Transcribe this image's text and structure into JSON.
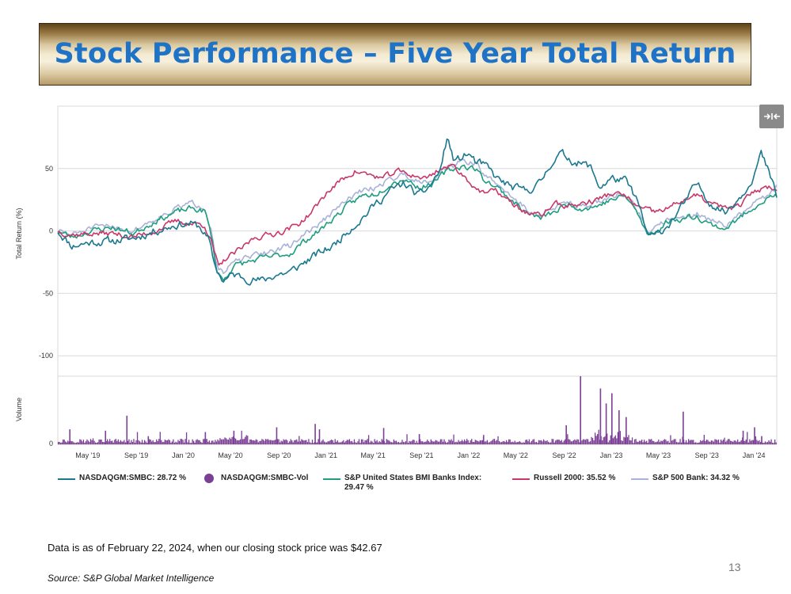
{
  "slide": {
    "title": "Stock Performance – Five Year Total Return",
    "footnote": "Data is as of February 22, 2024, when our closing stock price was $42.67",
    "source": "Source: S&P Global Market Intelligence",
    "page_number": "13"
  },
  "colors": {
    "title": "#1f73c6",
    "smbc": "#1b7890",
    "volume": "#7b3f96",
    "bmi_banks": "#1e9e7f",
    "russell": "#c8386a",
    "sp500_bank": "#a9b2d8"
  },
  "chart_data": {
    "type": "line",
    "ylabel": "Total Return (%)",
    "volume_label": "Volume",
    "ylim": [
      -110,
      100
    ],
    "yticks": [
      50,
      0,
      -50,
      -100
    ],
    "ytick_labels": [
      "50",
      "0",
      "-50",
      "-100"
    ],
    "volume_tick_label": "0",
    "x_range": [
      2019.12,
      2024.16
    ],
    "xticks": [
      {
        "x": 2019.33,
        "label": "May '19"
      },
      {
        "x": 2019.67,
        "label": "Sep '19"
      },
      {
        "x": 2020.0,
        "label": "Jan '20"
      },
      {
        "x": 2020.33,
        "label": "May '20"
      },
      {
        "x": 2020.67,
        "label": "Sep '20"
      },
      {
        "x": 2021.0,
        "label": "Jan '21"
      },
      {
        "x": 2021.33,
        "label": "May '21"
      },
      {
        "x": 2021.67,
        "label": "Sep '21"
      },
      {
        "x": 2022.0,
        "label": "Jan '22"
      },
      {
        "x": 2022.33,
        "label": "May '22"
      },
      {
        "x": 2022.67,
        "label": "Sep '22"
      },
      {
        "x": 2023.0,
        "label": "Jan '23"
      },
      {
        "x": 2023.33,
        "label": "May '23"
      },
      {
        "x": 2023.67,
        "label": "Sep '23"
      },
      {
        "x": 2024.0,
        "label": "Jan '24"
      }
    ],
    "series": [
      {
        "name": "NASDAQGM:SMBC",
        "legend": "NASDAQGM:SMBC: 28.72 %",
        "color_key": "smbc",
        "points": [
          [
            2019.12,
            0
          ],
          [
            2019.22,
            -12
          ],
          [
            2019.35,
            -9
          ],
          [
            2019.5,
            -8
          ],
          [
            2019.65,
            -6
          ],
          [
            2019.8,
            0
          ],
          [
            2019.95,
            5
          ],
          [
            2020.05,
            6
          ],
          [
            2020.12,
            3
          ],
          [
            2020.18,
            -8
          ],
          [
            2020.22,
            -28
          ],
          [
            2020.28,
            -40
          ],
          [
            2020.35,
            -35
          ],
          [
            2020.45,
            -38
          ],
          [
            2020.55,
            -40
          ],
          [
            2020.65,
            -35
          ],
          [
            2020.75,
            -33
          ],
          [
            2020.85,
            -25
          ],
          [
            2020.95,
            -18
          ],
          [
            2021.05,
            -12
          ],
          [
            2021.15,
            0
          ],
          [
            2021.25,
            10
          ],
          [
            2021.35,
            22
          ],
          [
            2021.45,
            32
          ],
          [
            2021.55,
            38
          ],
          [
            2021.65,
            28
          ],
          [
            2021.72,
            35
          ],
          [
            2021.8,
            48
          ],
          [
            2021.85,
            75
          ],
          [
            2021.9,
            55
          ],
          [
            2022.0,
            62
          ],
          [
            2022.05,
            55
          ],
          [
            2022.12,
            52
          ],
          [
            2022.2,
            42
          ],
          [
            2022.3,
            35
          ],
          [
            2022.4,
            32
          ],
          [
            2022.5,
            38
          ],
          [
            2022.58,
            55
          ],
          [
            2022.65,
            62
          ],
          [
            2022.75,
            55
          ],
          [
            2022.85,
            52
          ],
          [
            2022.92,
            35
          ],
          [
            2023.0,
            42
          ],
          [
            2023.1,
            40
          ],
          [
            2023.18,
            25
          ],
          [
            2023.25,
            -2
          ],
          [
            2023.3,
            -5
          ],
          [
            2023.4,
            5
          ],
          [
            2023.5,
            20
          ],
          [
            2023.6,
            38
          ],
          [
            2023.7,
            22
          ],
          [
            2023.8,
            15
          ],
          [
            2023.92,
            30
          ],
          [
            2024.0,
            45
          ],
          [
            2024.05,
            62
          ],
          [
            2024.1,
            48
          ],
          [
            2024.16,
            28
          ]
        ]
      },
      {
        "name": "S&P United States BMI Banks Index",
        "legend": "S&P United States BMI Banks Index: 29.47 %",
        "color_key": "bmi_banks",
        "points": [
          [
            2019.12,
            0
          ],
          [
            2019.22,
            -5
          ],
          [
            2019.35,
            0
          ],
          [
            2019.5,
            3
          ],
          [
            2019.65,
            -2
          ],
          [
            2019.8,
            8
          ],
          [
            2019.95,
            15
          ],
          [
            2020.05,
            18
          ],
          [
            2020.15,
            16
          ],
          [
            2020.2,
            -5
          ],
          [
            2020.23,
            -30
          ],
          [
            2020.28,
            -40
          ],
          [
            2020.35,
            -28
          ],
          [
            2020.45,
            -25
          ],
          [
            2020.55,
            -22
          ],
          [
            2020.65,
            -20
          ],
          [
            2020.75,
            -18
          ],
          [
            2020.85,
            -8
          ],
          [
            2020.95,
            0
          ],
          [
            2021.05,
            10
          ],
          [
            2021.15,
            20
          ],
          [
            2021.25,
            28
          ],
          [
            2021.35,
            30
          ],
          [
            2021.45,
            38
          ],
          [
            2021.55,
            42
          ],
          [
            2021.65,
            35
          ],
          [
            2021.75,
            38
          ],
          [
            2021.85,
            48
          ],
          [
            2021.95,
            52
          ],
          [
            2022.05,
            50
          ],
          [
            2022.1,
            42
          ],
          [
            2022.2,
            35
          ],
          [
            2022.3,
            25
          ],
          [
            2022.4,
            15
          ],
          [
            2022.5,
            10
          ],
          [
            2022.6,
            15
          ],
          [
            2022.7,
            22
          ],
          [
            2022.8,
            18
          ],
          [
            2022.9,
            20
          ],
          [
            2023.0,
            25
          ],
          [
            2023.1,
            28
          ],
          [
            2023.18,
            15
          ],
          [
            2023.25,
            -3
          ],
          [
            2023.32,
            0
          ],
          [
            2023.4,
            8
          ],
          [
            2023.5,
            10
          ],
          [
            2023.6,
            12
          ],
          [
            2023.7,
            5
          ],
          [
            2023.8,
            2
          ],
          [
            2023.9,
            10
          ],
          [
            2024.0,
            20
          ],
          [
            2024.08,
            25
          ],
          [
            2024.16,
            29
          ]
        ]
      },
      {
        "name": "Russell 2000",
        "legend": "Russell 2000: 35.52 %",
        "color_key": "russell",
        "points": [
          [
            2019.12,
            0
          ],
          [
            2019.22,
            -3
          ],
          [
            2019.35,
            -2
          ],
          [
            2019.5,
            -2
          ],
          [
            2019.65,
            -5
          ],
          [
            2019.8,
            0
          ],
          [
            2019.95,
            8
          ],
          [
            2020.05,
            6
          ],
          [
            2020.15,
            5
          ],
          [
            2020.2,
            -10
          ],
          [
            2020.25,
            -30
          ],
          [
            2020.3,
            -22
          ],
          [
            2020.4,
            -15
          ],
          [
            2020.5,
            -5
          ],
          [
            2020.6,
            -3
          ],
          [
            2020.7,
            0
          ],
          [
            2020.8,
            5
          ],
          [
            2020.9,
            15
          ],
          [
            2021.0,
            30
          ],
          [
            2021.1,
            40
          ],
          [
            2021.2,
            48
          ],
          [
            2021.3,
            45
          ],
          [
            2021.4,
            42
          ],
          [
            2021.5,
            48
          ],
          [
            2021.6,
            45
          ],
          [
            2021.7,
            42
          ],
          [
            2021.8,
            50
          ],
          [
            2021.9,
            52
          ],
          [
            2022.0,
            40
          ],
          [
            2022.1,
            30
          ],
          [
            2022.2,
            32
          ],
          [
            2022.3,
            22
          ],
          [
            2022.4,
            15
          ],
          [
            2022.5,
            12
          ],
          [
            2022.6,
            22
          ],
          [
            2022.7,
            20
          ],
          [
            2022.8,
            22
          ],
          [
            2022.9,
            25
          ],
          [
            2023.0,
            30
          ],
          [
            2023.1,
            28
          ],
          [
            2023.2,
            18
          ],
          [
            2023.3,
            15
          ],
          [
            2023.4,
            18
          ],
          [
            2023.5,
            25
          ],
          [
            2023.6,
            28
          ],
          [
            2023.7,
            22
          ],
          [
            2023.8,
            18
          ],
          [
            2023.9,
            20
          ],
          [
            2024.0,
            32
          ],
          [
            2024.08,
            35
          ],
          [
            2024.16,
            35
          ]
        ]
      },
      {
        "name": "S&P 500 Bank",
        "legend": "S&P 500 Bank: 34.32 %",
        "color_key": "sp500_bank",
        "points": [
          [
            2019.12,
            0
          ],
          [
            2019.22,
            -3
          ],
          [
            2019.35,
            2
          ],
          [
            2019.5,
            4
          ],
          [
            2019.65,
            0
          ],
          [
            2019.8,
            10
          ],
          [
            2019.95,
            18
          ],
          [
            2020.05,
            22
          ],
          [
            2020.15,
            20
          ],
          [
            2020.2,
            0
          ],
          [
            2020.23,
            -25
          ],
          [
            2020.28,
            -35
          ],
          [
            2020.35,
            -25
          ],
          [
            2020.45,
            -22
          ],
          [
            2020.55,
            -18
          ],
          [
            2020.65,
            -15
          ],
          [
            2020.75,
            -12
          ],
          [
            2020.85,
            -2
          ],
          [
            2020.95,
            5
          ],
          [
            2021.05,
            15
          ],
          [
            2021.15,
            25
          ],
          [
            2021.25,
            32
          ],
          [
            2021.35,
            35
          ],
          [
            2021.45,
            42
          ],
          [
            2021.55,
            45
          ],
          [
            2021.65,
            40
          ],
          [
            2021.75,
            42
          ],
          [
            2021.85,
            52
          ],
          [
            2021.95,
            55
          ],
          [
            2022.05,
            55
          ],
          [
            2022.1,
            45
          ],
          [
            2022.2,
            38
          ],
          [
            2022.3,
            28
          ],
          [
            2022.4,
            18
          ],
          [
            2022.5,
            12
          ],
          [
            2022.6,
            18
          ],
          [
            2022.7,
            24
          ],
          [
            2022.8,
            20
          ],
          [
            2022.9,
            22
          ],
          [
            2023.0,
            28
          ],
          [
            2023.1,
            30
          ],
          [
            2023.18,
            18
          ],
          [
            2023.25,
            0
          ],
          [
            2023.32,
            2
          ],
          [
            2023.4,
            10
          ],
          [
            2023.5,
            12
          ],
          [
            2023.6,
            14
          ],
          [
            2023.7,
            8
          ],
          [
            2023.8,
            5
          ],
          [
            2023.9,
            12
          ],
          [
            2024.0,
            22
          ],
          [
            2024.08,
            28
          ],
          [
            2024.16,
            34
          ]
        ]
      }
    ],
    "volume_series": {
      "name": "NASDAQGM:SMBC-Vol",
      "legend": "NASDAQGM:SMBC-Vol",
      "color_key": "volume",
      "unit": "relative",
      "spikes": [
        [
          2019.2,
          0.22
        ],
        [
          2019.45,
          0.2
        ],
        [
          2019.6,
          0.42
        ],
        [
          2019.75,
          0.12
        ],
        [
          2020.15,
          0.18
        ],
        [
          2020.35,
          0.2
        ],
        [
          2020.65,
          0.25
        ],
        [
          2020.92,
          0.3
        ],
        [
          2020.95,
          0.22
        ],
        [
          2021.4,
          0.24
        ],
        [
          2021.65,
          0.15
        ],
        [
          2022.1,
          0.12
        ],
        [
          2022.68,
          0.28
        ],
        [
          2022.78,
          1.0
        ],
        [
          2022.92,
          0.82
        ],
        [
          2022.96,
          0.6
        ],
        [
          2023.0,
          0.75
        ],
        [
          2023.05,
          0.5
        ],
        [
          2023.1,
          0.4
        ],
        [
          2023.5,
          0.48
        ],
        [
          2023.92,
          0.2
        ],
        [
          2024.0,
          0.25
        ],
        [
          2024.05,
          0.12
        ]
      ]
    }
  }
}
